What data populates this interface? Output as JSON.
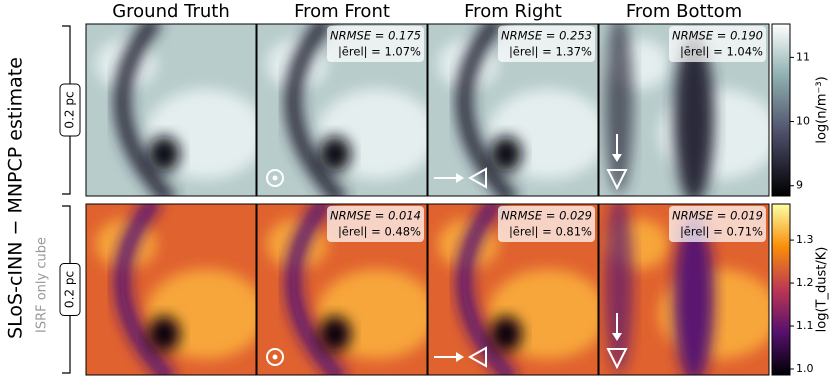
{
  "column_titles": [
    "Ground Truth",
    "From Front",
    "From Right",
    "From Bottom"
  ],
  "side_label": "SLoS-cINN − MNPCP estimate",
  "side_sublabel": "ISRF only cube",
  "rows": [
    {
      "scale_label": "0.2 pc",
      "colorbar": {
        "label": "log(n/m⁻³)",
        "lim": [
          8.84,
          11.52
        ],
        "ticks": [
          9,
          10,
          11
        ]
      },
      "metrics": [
        {
          "nrmse": "NRMSE = 0.175",
          "erel": "|ērel| = 1.07%"
        },
        {
          "nrmse": "NRMSE = 0.253",
          "erel": "|ērel| = 1.37%"
        },
        {
          "nrmse": "NRMSE = 0.190",
          "erel": "|ērel| = 1.04%"
        }
      ]
    },
    {
      "scale_label": "0.2 pc",
      "colorbar": {
        "label": "log(T_dust/K)",
        "lim": [
          0.986,
          1.384
        ],
        "ticks": [
          {
            "value": 1,
            "label": "1.0"
          },
          1.1,
          1.2,
          1.3
        ]
      },
      "metrics": [
        {
          "nrmse": "NRMSE = 0.014",
          "erel": "|ērel| = 0.48%"
        },
        {
          "nrmse": "NRMSE = 0.029",
          "erel": "|ērel| = 0.81%"
        },
        {
          "nrmse": "NRMSE = 0.019",
          "erel": "|ērel| = 0.71%"
        }
      ]
    }
  ]
}
